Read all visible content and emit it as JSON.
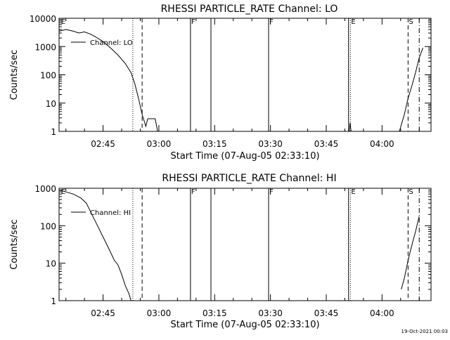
{
  "chart_data": [
    {
      "type": "line",
      "title": "RHESSI PARTICLE_RATE Channel: LO",
      "xlabel": "Start Time (07-Aug-05 02:33:10)",
      "ylabel": "Counts/sec",
      "y_scale": "log",
      "ylim": [
        1,
        10000
      ],
      "y_ticks": [
        {
          "value": 1,
          "label": "1"
        },
        {
          "value": 10,
          "label": "10"
        },
        {
          "value": 100,
          "label": "100"
        },
        {
          "value": 1000,
          "label": "1000"
        },
        {
          "value": 10000,
          "label": "10000"
        }
      ],
      "xlim": [
        "02:33:10",
        "04:13:10"
      ],
      "x_ticks": [
        "02:45",
        "03:00",
        "03:15",
        "03:30",
        "03:45",
        "04:00"
      ],
      "legend_label": "Channel: LO",
      "legend_position": "top-left",
      "markers": [
        {
          "time": "02:33:30",
          "label": "E",
          "style": "none"
        },
        {
          "time": "02:53:00",
          "label": "",
          "style": "dotted"
        },
        {
          "time": "02:55:30",
          "label": "",
          "style": "dashed"
        },
        {
          "time": "03:08:30",
          "label": "F",
          "style": "solid"
        },
        {
          "time": "03:14:00",
          "label": "",
          "style": "solid"
        },
        {
          "time": "03:29:30",
          "label": "F",
          "style": "solid"
        },
        {
          "time": "03:51:00",
          "label": "",
          "style": "solid"
        },
        {
          "time": "03:51:30",
          "label": "E",
          "style": "dotted"
        },
        {
          "time": "04:07:00",
          "label": "S",
          "style": "dashed"
        },
        {
          "time": "04:10:00",
          "label": "",
          "style": "dashdot"
        }
      ],
      "series": [
        {
          "name": "Channel: LO",
          "segments": [
            [
              [
                "02:33:10",
                3500
              ],
              [
                "02:35:00",
                4000
              ],
              [
                "02:37:00",
                3500
              ],
              [
                "02:38:30",
                3000
              ],
              [
                "02:40:00",
                3300
              ],
              [
                "02:41:30",
                2800
              ],
              [
                "02:43:00",
                2200
              ],
              [
                "02:45:00",
                1500
              ],
              [
                "02:47:00",
                900
              ],
              [
                "02:49:00",
                500
              ],
              [
                "02:51:00",
                250
              ],
              [
                "02:52:30",
                120
              ],
              [
                "02:53:30",
                50
              ],
              [
                "02:54:30",
                15
              ],
              [
                "02:55:30",
                4
              ],
              [
                "02:56:30",
                1.5
              ],
              [
                "02:57:00",
                2.8
              ],
              [
                "02:58:00",
                2.8
              ],
              [
                "02:59:00",
                2.8
              ],
              [
                "02:59:40",
                1
              ]
            ],
            [
              [
                "03:51:10",
                1
              ],
              [
                "03:51:25",
                2
              ],
              [
                "03:51:40",
                1
              ]
            ],
            [
              [
                "04:04:40",
                1
              ],
              [
                "04:06:00",
                4
              ],
              [
                "04:07:00",
                15
              ],
              [
                "04:08:00",
                40
              ],
              [
                "04:09:00",
                120
              ],
              [
                "04:10:00",
                400
              ],
              [
                "04:11:00",
                900
              ]
            ]
          ]
        }
      ]
    },
    {
      "type": "line",
      "title": "RHESSI PARTICLE_RATE Channel: HI",
      "xlabel": "Start Time (07-Aug-05 02:33:10)",
      "ylabel": "Counts/sec",
      "y_scale": "log",
      "ylim": [
        1,
        1000
      ],
      "y_ticks": [
        {
          "value": 1,
          "label": "1"
        },
        {
          "value": 10,
          "label": "10"
        },
        {
          "value": 100,
          "label": "100"
        },
        {
          "value": 1000,
          "label": "1000"
        }
      ],
      "xlim": [
        "02:33:10",
        "04:13:10"
      ],
      "x_ticks": [
        "02:45",
        "03:00",
        "03:15",
        "03:30",
        "03:45",
        "04:00"
      ],
      "legend_label": "Channel: HI",
      "legend_position": "top-left",
      "markers": [
        {
          "time": "02:33:30",
          "label": "E",
          "style": "none"
        },
        {
          "time": "02:53:00",
          "label": "",
          "style": "dotted"
        },
        {
          "time": "02:55:30",
          "label": "",
          "style": "dashed"
        },
        {
          "time": "03:08:30",
          "label": "F",
          "style": "solid"
        },
        {
          "time": "03:14:00",
          "label": "",
          "style": "solid"
        },
        {
          "time": "03:29:30",
          "label": "F",
          "style": "solid"
        },
        {
          "time": "03:51:00",
          "label": "",
          "style": "solid"
        },
        {
          "time": "03:51:30",
          "label": "E",
          "style": "dotted"
        },
        {
          "time": "04:07:00",
          "label": "S",
          "style": "dashed"
        },
        {
          "time": "04:10:00",
          "label": "",
          "style": "dashdot"
        }
      ],
      "series": [
        {
          "name": "Channel: HI",
          "segments": [
            [
              [
                "02:33:10",
                900
              ],
              [
                "02:35:00",
                800
              ],
              [
                "02:37:00",
                700
              ],
              [
                "02:39:00",
                550
              ],
              [
                "02:40:30",
                400
              ],
              [
                "02:42:00",
                200
              ],
              [
                "02:43:30",
                100
              ],
              [
                "02:45:00",
                50
              ],
              [
                "02:46:30",
                25
              ],
              [
                "02:48:00",
                12
              ],
              [
                "02:49:00",
                9
              ],
              [
                "02:50:00",
                5
              ],
              [
                "02:51:00",
                2.5
              ],
              [
                "02:52:00",
                1.5
              ],
              [
                "02:52:30",
                1
              ]
            ],
            [
              [
                "04:05:10",
                2
              ],
              [
                "04:06:00",
                4
              ],
              [
                "04:07:00",
                12
              ],
              [
                "04:08:00",
                30
              ],
              [
                "04:09:00",
                70
              ],
              [
                "04:10:00",
                180
              ]
            ]
          ]
        }
      ]
    }
  ],
  "footer": {
    "timestamp": "19-Oct-2021 00:03"
  }
}
